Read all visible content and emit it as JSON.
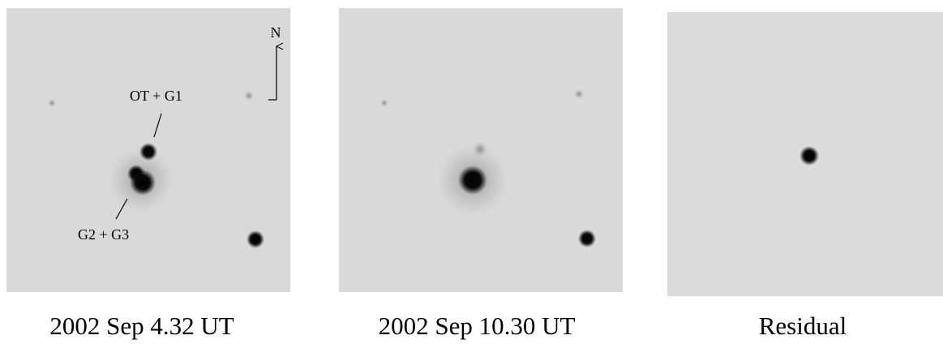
{
  "panels": [
    {
      "caption": "2002 Sep 4.32 UT",
      "annotations": [
        "N",
        "OT + G1",
        "G2 + G3"
      ]
    },
    {
      "caption": "2002 Sep 10.30 UT"
    },
    {
      "caption": "Residual"
    }
  ]
}
